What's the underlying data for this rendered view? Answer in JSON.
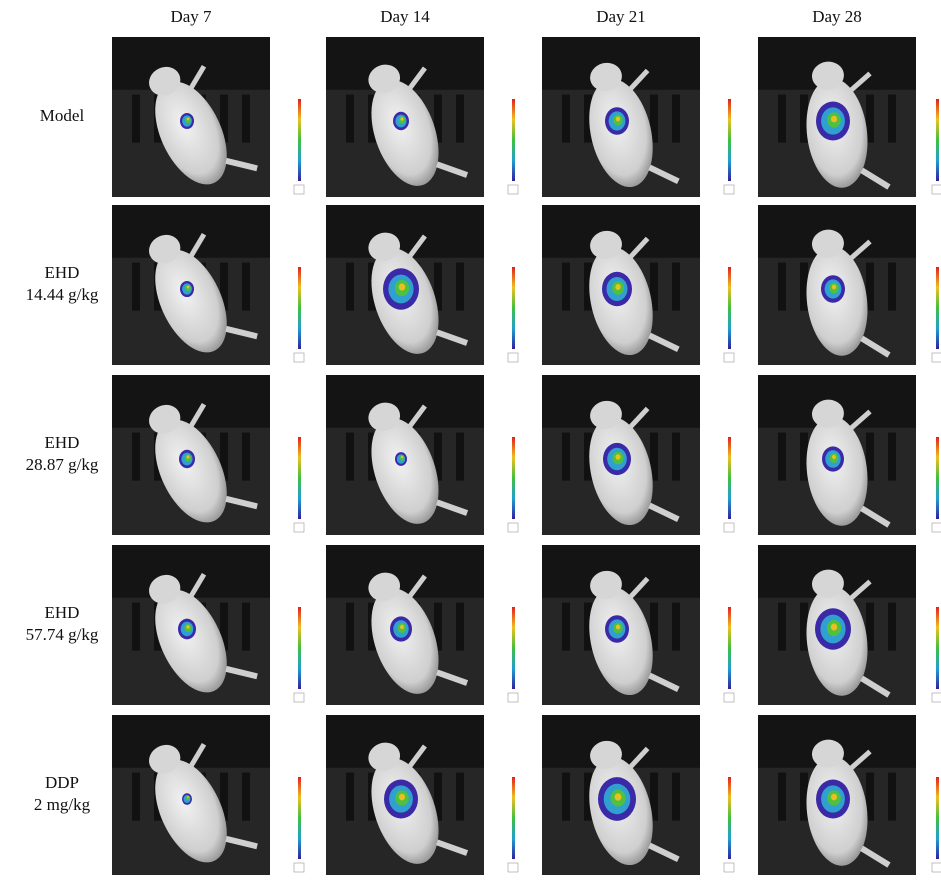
{
  "columns": [
    "Day 7",
    "Day 14",
    "Day 21",
    "Day 28"
  ],
  "rows": [
    [
      "Model"
    ],
    [
      "EHD",
      "14.44 g/kg"
    ],
    [
      "EHD",
      "28.87 g/kg"
    ],
    [
      "EHD",
      "57.74 g/kg"
    ],
    [
      "DDP",
      "2 mg/kg"
    ]
  ]
}
